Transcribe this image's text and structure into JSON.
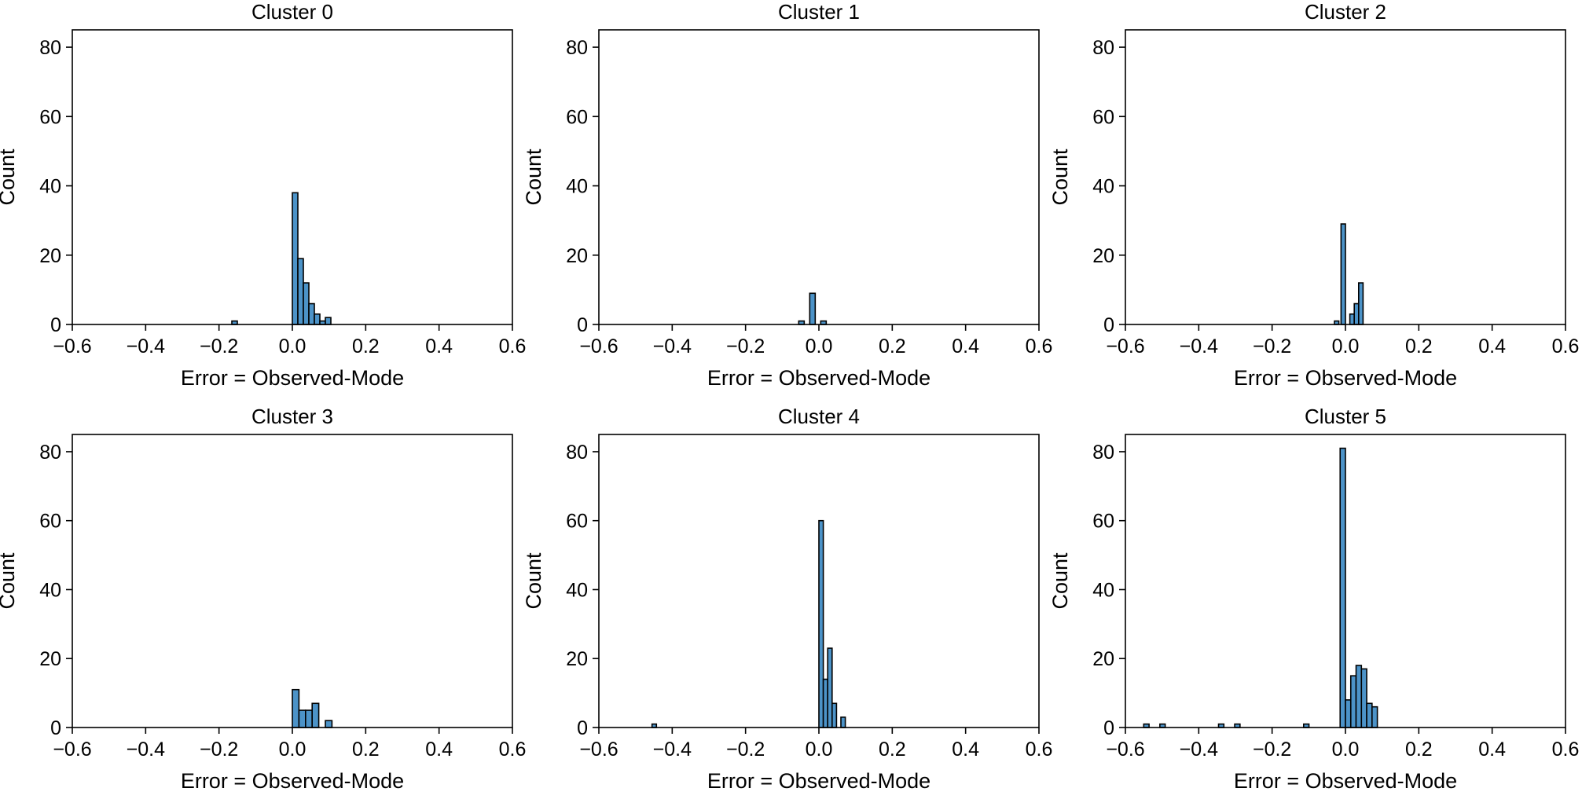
{
  "style": {
    "bar_color": "#4c93c8",
    "edge_color": "#000000",
    "background": "#ffffff"
  },
  "chart_data": [
    {
      "type": "bar",
      "title": "Cluster 0",
      "xlabel": "Error = Observed-Mode",
      "ylabel": "Count",
      "xlim": [
        -0.6,
        0.6
      ],
      "ylim": [
        0,
        85
      ],
      "xticks": [
        "−0.6",
        "−0.4",
        "−0.2",
        "0.0",
        "0.2",
        "0.4",
        "0.6"
      ],
      "yticks": [
        "0",
        "20",
        "40",
        "60",
        "80"
      ],
      "bin_width": 0.015,
      "bins": [
        {
          "x": -0.165,
          "count": 1
        },
        {
          "x": 0.0,
          "count": 38
        },
        {
          "x": 0.015,
          "count": 19
        },
        {
          "x": 0.03,
          "count": 12
        },
        {
          "x": 0.045,
          "count": 6
        },
        {
          "x": 0.06,
          "count": 3
        },
        {
          "x": 0.075,
          "count": 1
        },
        {
          "x": 0.09,
          "count": 2
        }
      ]
    },
    {
      "type": "bar",
      "title": "Cluster 1",
      "xlabel": "Error = Observed-Mode",
      "ylabel": "Count",
      "xlim": [
        -0.6,
        0.6
      ],
      "ylim": [
        0,
        85
      ],
      "xticks": [
        "−0.6",
        "−0.4",
        "−0.2",
        "0.0",
        "0.2",
        "0.4",
        "0.6"
      ],
      "yticks": [
        "0",
        "20",
        "40",
        "60",
        "80"
      ],
      "bin_width": 0.015,
      "bins": [
        {
          "x": -0.055,
          "count": 1
        },
        {
          "x": -0.025,
          "count": 9
        },
        {
          "x": 0.005,
          "count": 1
        }
      ]
    },
    {
      "type": "bar",
      "title": "Cluster 2",
      "xlabel": "Error = Observed-Mode",
      "ylabel": "Count",
      "xlim": [
        -0.6,
        0.6
      ],
      "ylim": [
        0,
        85
      ],
      "xticks": [
        "−0.6",
        "−0.4",
        "−0.2",
        "0.0",
        "0.2",
        "0.4",
        "0.6"
      ],
      "yticks": [
        "0",
        "20",
        "40",
        "60",
        "80"
      ],
      "bin_width": 0.012,
      "bins": [
        {
          "x": -0.03,
          "count": 1
        },
        {
          "x": -0.012,
          "count": 29
        },
        {
          "x": 0.012,
          "count": 3
        },
        {
          "x": 0.024,
          "count": 6
        },
        {
          "x": 0.036,
          "count": 12
        }
      ]
    },
    {
      "type": "bar",
      "title": "Cluster 3",
      "xlabel": "Error = Observed-Mode",
      "ylabel": "Count",
      "xlim": [
        -0.6,
        0.6
      ],
      "ylim": [
        0,
        85
      ],
      "xticks": [
        "−0.6",
        "−0.4",
        "−0.2",
        "0.0",
        "0.2",
        "0.4",
        "0.6"
      ],
      "yticks": [
        "0",
        "20",
        "40",
        "60",
        "80"
      ],
      "bin_width": 0.018,
      "bins": [
        {
          "x": 0.0,
          "count": 11
        },
        {
          "x": 0.018,
          "count": 5
        },
        {
          "x": 0.036,
          "count": 5
        },
        {
          "x": 0.054,
          "count": 7
        },
        {
          "x": 0.09,
          "count": 2
        }
      ]
    },
    {
      "type": "bar",
      "title": "Cluster 4",
      "xlabel": "Error = Observed-Mode",
      "ylabel": "Count",
      "xlim": [
        -0.6,
        0.6
      ],
      "ylim": [
        0,
        85
      ],
      "xticks": [
        "−0.6",
        "−0.4",
        "−0.2",
        "0.0",
        "0.2",
        "0.4",
        "0.6"
      ],
      "yticks": [
        "0",
        "20",
        "40",
        "60",
        "80"
      ],
      "bin_width": 0.012,
      "bins": [
        {
          "x": -0.455,
          "count": 1
        },
        {
          "x": 0.0,
          "count": 60
        },
        {
          "x": 0.012,
          "count": 14
        },
        {
          "x": 0.024,
          "count": 23
        },
        {
          "x": 0.036,
          "count": 7
        },
        {
          "x": 0.06,
          "count": 3
        }
      ]
    },
    {
      "type": "bar",
      "title": "Cluster 5",
      "xlabel": "Error = Observed-Mode",
      "ylabel": "Count",
      "xlim": [
        -0.6,
        0.6
      ],
      "ylim": [
        0,
        85
      ],
      "xticks": [
        "−0.6",
        "−0.4",
        "−0.2",
        "0.0",
        "0.2",
        "0.4",
        "0.6"
      ],
      "yticks": [
        "0",
        "20",
        "40",
        "60",
        "80"
      ],
      "bin_width": 0.0145,
      "bins": [
        {
          "x": -0.55,
          "count": 1
        },
        {
          "x": -0.506,
          "count": 1
        },
        {
          "x": -0.346,
          "count": 1
        },
        {
          "x": -0.302,
          "count": 1
        },
        {
          "x": -0.114,
          "count": 1
        },
        {
          "x": -0.0145,
          "count": 81
        },
        {
          "x": 0.0,
          "count": 8
        },
        {
          "x": 0.0145,
          "count": 15
        },
        {
          "x": 0.029,
          "count": 18
        },
        {
          "x": 0.0435,
          "count": 17
        },
        {
          "x": 0.058,
          "count": 7
        },
        {
          "x": 0.0725,
          "count": 6
        }
      ]
    }
  ]
}
